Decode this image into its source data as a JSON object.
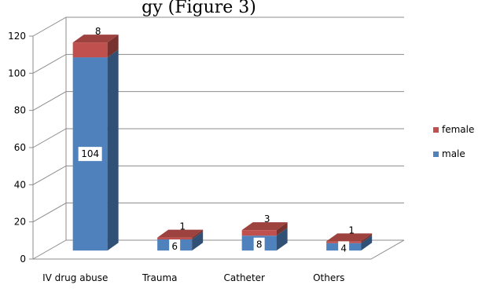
{
  "top_text": "gy (Figure 3)",
  "chart_data": {
    "type": "bar",
    "stacked": true,
    "three_d": true,
    "categories": [
      "IV drug abuse",
      "Trauma",
      "Catheter",
      "Others"
    ],
    "series": [
      {
        "name": "male",
        "values": [
          104,
          6,
          8,
          4
        ],
        "color": "#4f81bd",
        "label_texts": [
          "104",
          "6",
          "8",
          "4"
        ]
      },
      {
        "name": "female",
        "values": [
          8,
          1,
          3,
          1
        ],
        "color": "#c0504d",
        "label_texts": [
          "8",
          "1",
          "3",
          "1"
        ]
      }
    ],
    "ylim": [
      0,
      120
    ],
    "yticks": [
      "0",
      "20",
      "40",
      "60",
      "80",
      "100",
      "120"
    ],
    "ytick_values": [
      0,
      20,
      40,
      60,
      80,
      100,
      120
    ],
    "grid": true,
    "legend_position": "right"
  }
}
